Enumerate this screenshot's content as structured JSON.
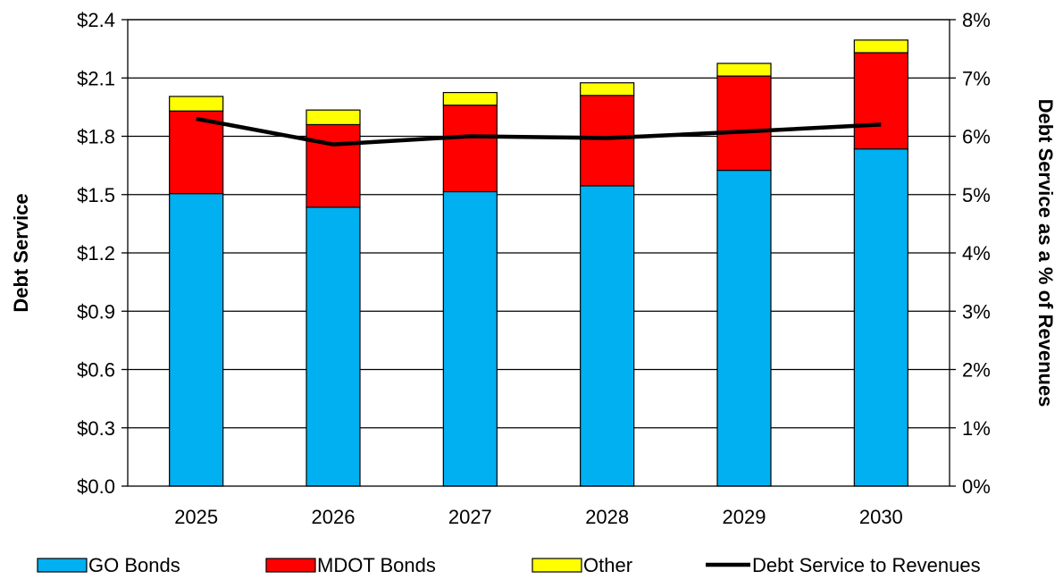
{
  "chart_data": {
    "type": "bar",
    "stacked": true,
    "categories": [
      "2025",
      "2026",
      "2027",
      "2028",
      "2029",
      "2030"
    ],
    "series": [
      {
        "name": "GO Bonds",
        "color": "#00B0F0",
        "values": [
          1.505,
          1.435,
          1.515,
          1.545,
          1.625,
          1.735
        ]
      },
      {
        "name": "MDOT Bonds",
        "color": "#FF0000",
        "values": [
          0.425,
          0.425,
          0.445,
          0.465,
          0.485,
          0.495
        ]
      },
      {
        "name": "Other",
        "color": "#FFFF00",
        "values": [
          0.075,
          0.075,
          0.065,
          0.065,
          0.065,
          0.065
        ]
      }
    ],
    "line_series": {
      "name": "Debt Service to Revenues",
      "color": "#000000",
      "axis": "right",
      "values": [
        6.3,
        5.86,
        6.0,
        5.97,
        6.08,
        6.2
      ]
    },
    "ylabel": "Debt Service",
    "y2label": "Debt Service as a % of Revenues",
    "ylim": [
      0,
      2.4
    ],
    "y2lim": [
      0,
      8
    ],
    "yticks": [
      "$0.0",
      "$0.3",
      "$0.6",
      "$0.9",
      "$1.2",
      "$1.5",
      "$1.8",
      "$2.1",
      "$2.4"
    ],
    "y2ticks": [
      "0%",
      "1%",
      "2%",
      "3%",
      "4%",
      "5%",
      "6%",
      "7%",
      "8%"
    ],
    "grid": true,
    "legend_position": "bottom"
  }
}
